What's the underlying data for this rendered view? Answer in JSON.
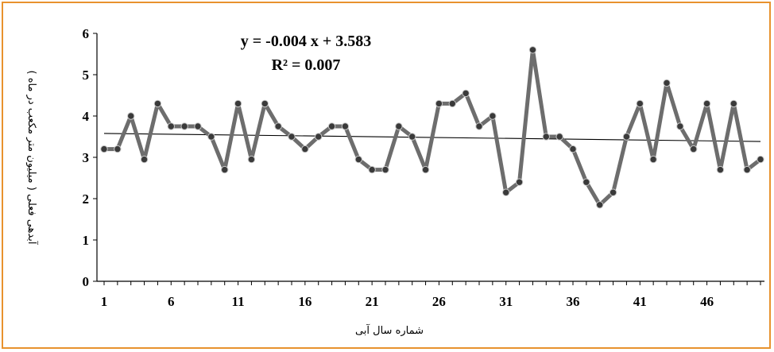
{
  "chart_data": {
    "type": "line",
    "x": [
      1,
      2,
      3,
      4,
      5,
      6,
      7,
      8,
      9,
      10,
      11,
      12,
      13,
      14,
      15,
      16,
      17,
      18,
      19,
      20,
      21,
      22,
      23,
      24,
      25,
      26,
      27,
      28,
      29,
      30,
      31,
      32,
      33,
      34,
      35,
      36,
      37,
      38,
      39,
      40,
      41,
      42,
      43,
      44,
      45,
      46,
      47,
      48,
      49,
      50
    ],
    "series": [
      {
        "values": [
          3.2,
          3.2,
          4.0,
          2.95,
          4.3,
          3.75,
          3.75,
          3.75,
          3.5,
          2.7,
          4.3,
          2.95,
          4.3,
          3.75,
          3.5,
          3.2,
          3.5,
          3.75,
          3.75,
          2.95,
          2.7,
          2.7,
          3.75,
          3.5,
          2.7,
          4.3,
          4.3,
          4.55,
          3.75,
          4.0,
          2.15,
          2.4,
          5.6,
          3.5,
          3.5,
          3.2,
          2.4,
          1.85,
          2.15,
          3.5,
          4.3,
          2.95,
          4.8,
          3.75,
          3.2,
          4.3,
          2.7,
          4.3,
          2.7,
          2.95
        ]
      }
    ],
    "trendline": {
      "slope": -0.004,
      "intercept": 3.583
    },
    "equation_label": "y = -0.004 x + 3.583",
    "r2_label": "R² = 0.007",
    "xlabel": "شماره سال آبی",
    "ylabel": "آبدهی فعلی ( میلیون متر مکعب در ماه )",
    "ylim": [
      0,
      6
    ],
    "yticks": [
      "0",
      "1",
      "2",
      "3",
      "4",
      "5",
      "6"
    ],
    "xticks": [
      "1",
      "6",
      "11",
      "16",
      "21",
      "26",
      "31",
      "36",
      "41",
      "46"
    ],
    "grid": false,
    "colors": {
      "line": "#6d6d6d",
      "marker": "#3a3a3a",
      "trend": "#000000",
      "border": "#e8922e"
    }
  }
}
